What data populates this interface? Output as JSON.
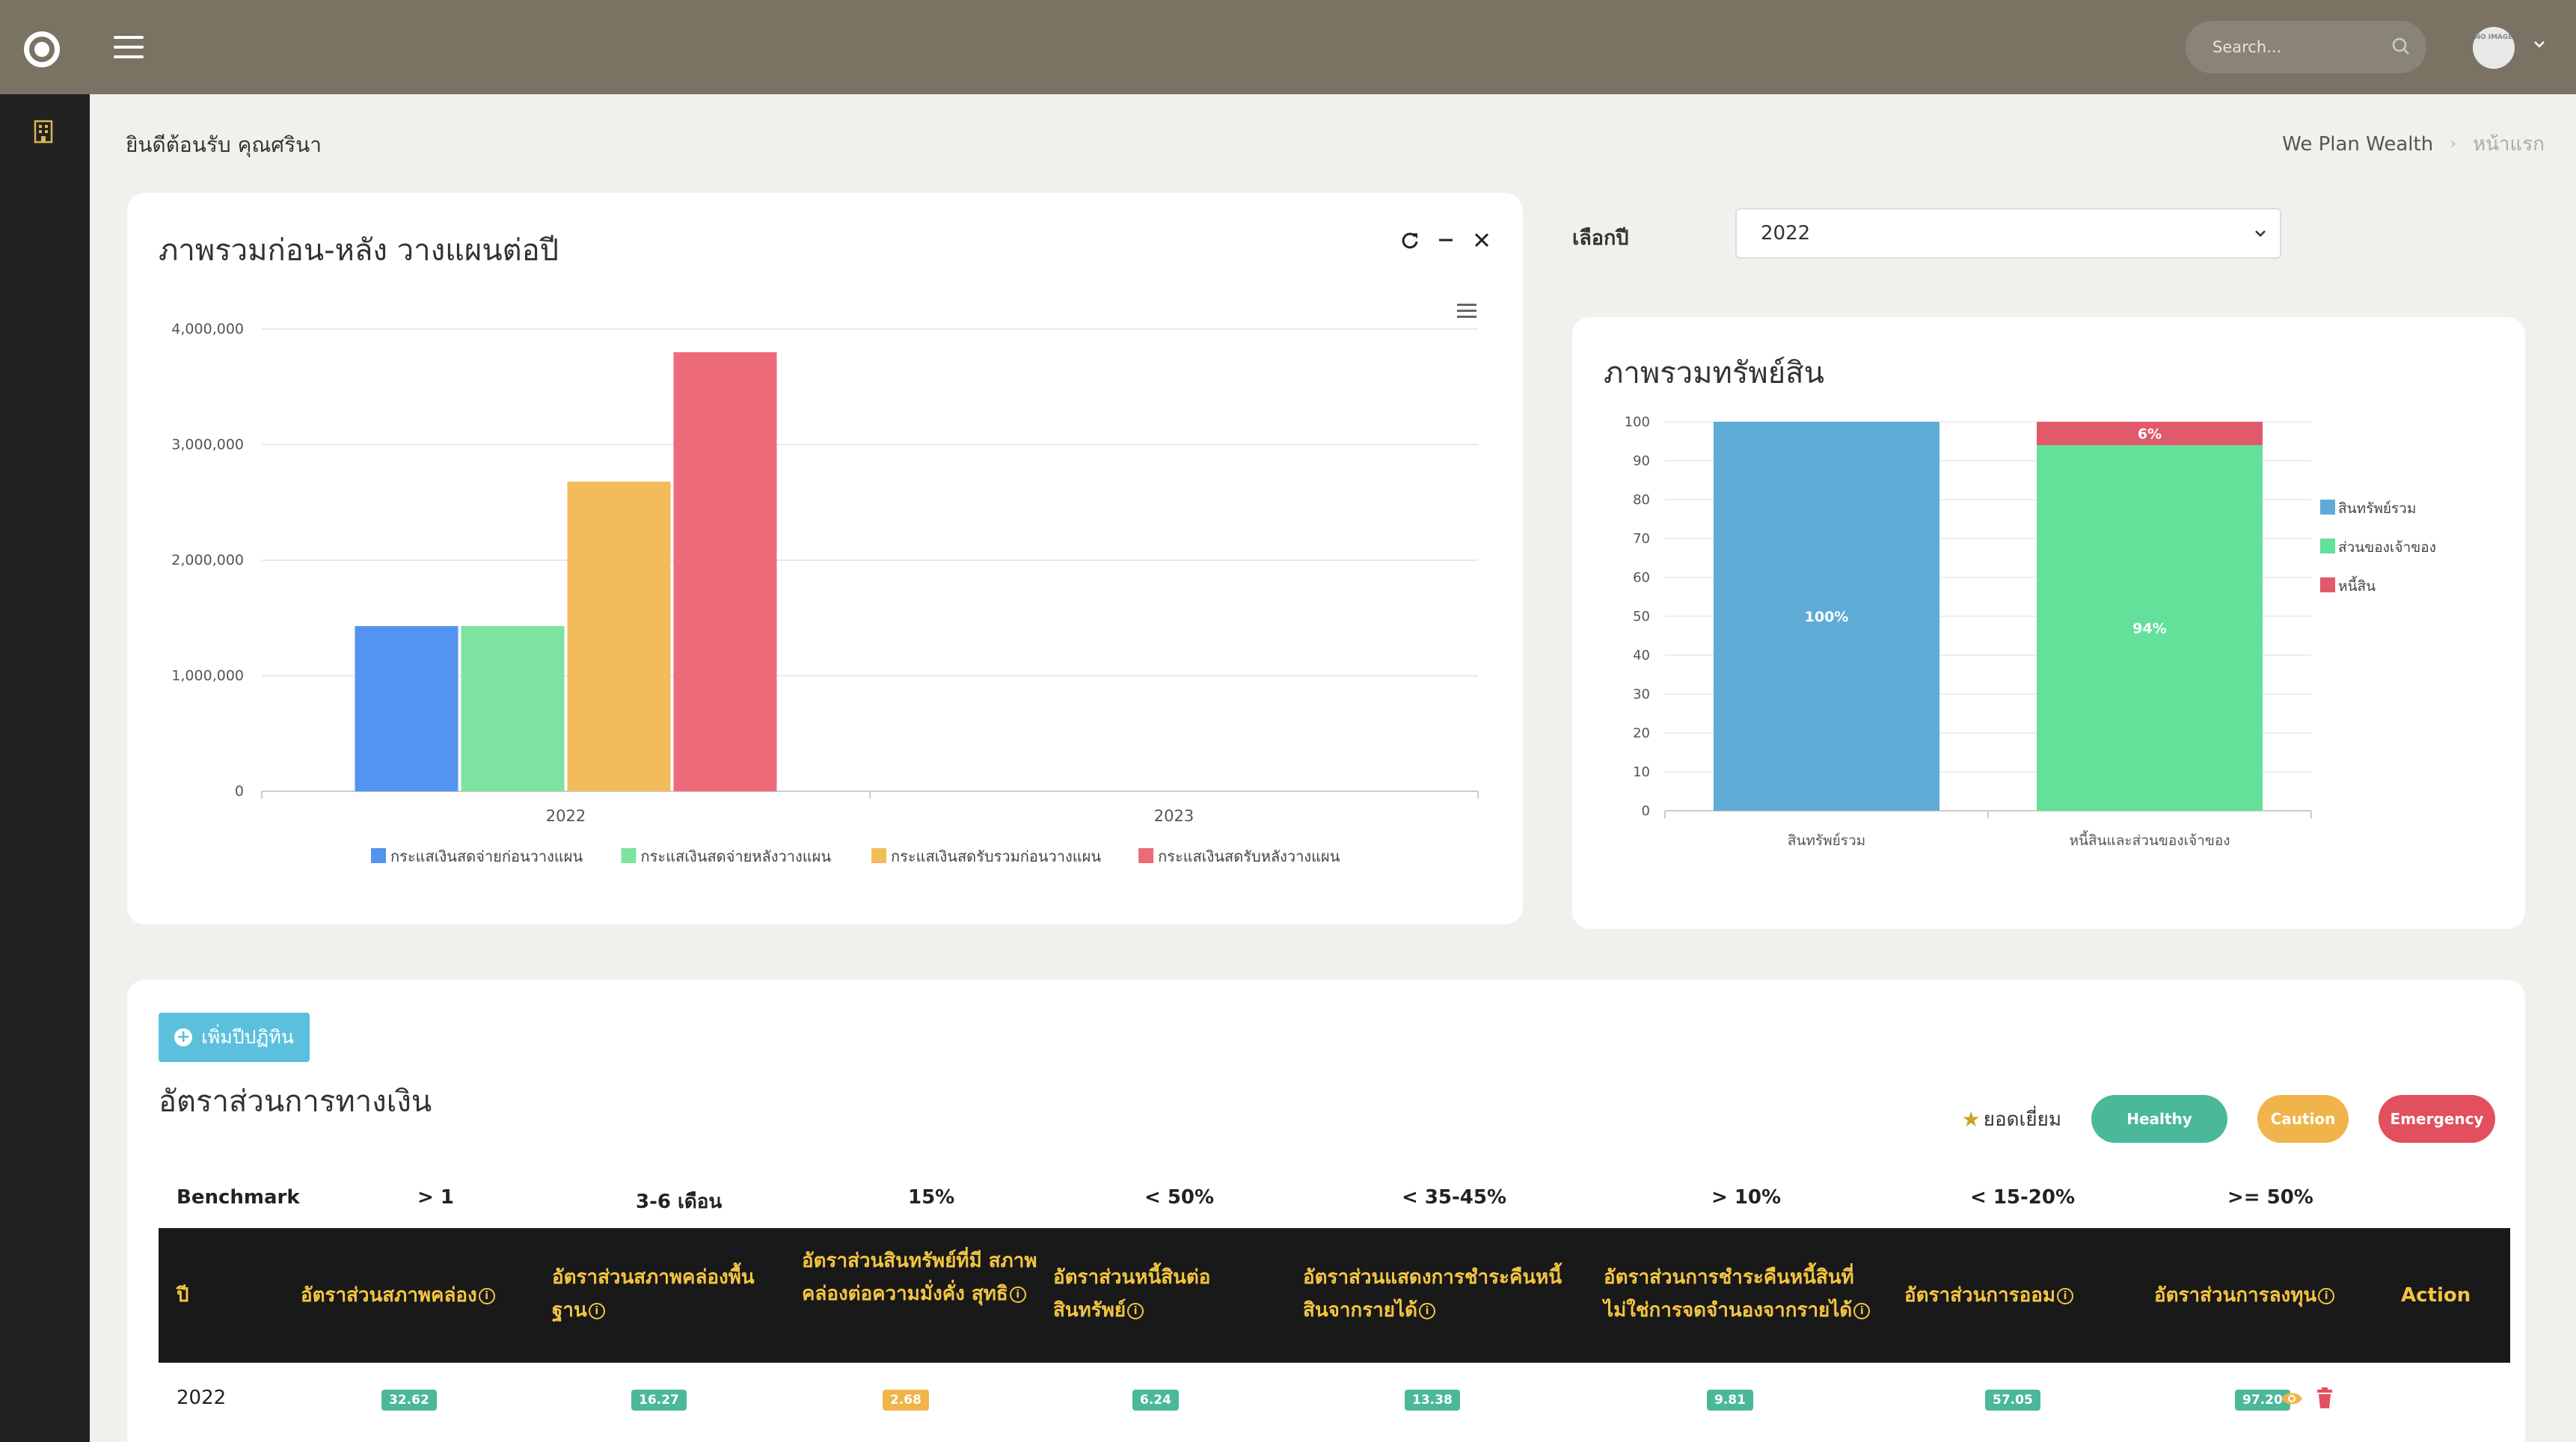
{
  "header": {
    "search_placeholder": "Search...",
    "avatar_text": "NO IMAGE"
  },
  "page": {
    "welcome": "ยินดีต้อนรับ คุณศรินา",
    "breadcrumb": [
      "We Plan Wealth",
      "หน้าแรก"
    ]
  },
  "year_select": {
    "label": "เลือกปี",
    "value": "2022"
  },
  "card_before_after": {
    "title": "ภาพรวมก่อน-หลัง วางแผนต่อปี"
  },
  "card_assets": {
    "title": "ภาพรวมทรัพย์สิน"
  },
  "ratios": {
    "add_button": "เพิ่มปีปฏิทิน",
    "title": "อัตราส่วนการทางเงิน",
    "legend": {
      "excellent": "ยอดเยี่ยม",
      "healthy": "Healthy",
      "caution": "Caution",
      "emergency": "Emergency"
    },
    "benchmark": {
      "label": "Benchmark",
      "values": [
        "> 1",
        "3-6 เดือน",
        "15%",
        "< 50%",
        "< 35-45%",
        "> 10%",
        "< 15-20%",
        ">= 50%"
      ]
    },
    "columns": [
      "ปี",
      "อัตราส่วนสภาพคล่อง",
      "อัตราส่วนสภาพคล่องพื้น ฐาน",
      "อัตราส่วนสินทรัพย์ที่มี สภาพคล่องต่อความมั่งคั่ง สุทธิ",
      "อัตราส่วนหนี้สินต่อ สินทรัพย์",
      "อัตราส่วนแสดงการชำระคืนหนี้ สินจากรายได้",
      "อัตราส่วนการชำระคืนหนี้สินที่ ไม่ใช่การจดจำนองจากรายได้",
      "อัตราส่วนการออม",
      "อัตราส่วนการลงทุน",
      "Action"
    ],
    "rows": [
      {
        "year": "2022",
        "values": [
          "32.62",
          "16.27",
          "2.68",
          "6.24",
          "13.38",
          "9.81",
          "57.05",
          "97.20"
        ],
        "statuses": [
          "green",
          "green",
          "yellow",
          "green",
          "green",
          "green",
          "green",
          "green"
        ]
      }
    ]
  },
  "chart_data": [
    {
      "type": "bar",
      "categories": [
        "2022",
        "2023"
      ],
      "series": [
        {
          "name": "กระแสเงินสดจ่ายก่อนวางแผน",
          "color": "#5294f0",
          "values": [
            1430000,
            0
          ]
        },
        {
          "name": "กระแสเงินสดจ่ายหลังวางแผน",
          "color": "#7de3a0",
          "values": [
            1430000,
            0
          ]
        },
        {
          "name": "กระแสเงินสดรับรวมก่อนวางแผน",
          "color": "#f2bb5b",
          "values": [
            2680000,
            0
          ]
        },
        {
          "name": "กระแสเงินสดรับหลังวางแผน",
          "color": "#ed6b79",
          "values": [
            3800000,
            0
          ]
        }
      ],
      "ylim": [
        0,
        4000000
      ],
      "yticks": [
        "0",
        "1,000,000",
        "2,000,000",
        "3,000,000",
        "4,000,000"
      ],
      "legend": "bottom",
      "grid": true
    },
    {
      "type": "bar",
      "stacked": true,
      "categories": [
        "สินทรัพย์รวม",
        "หนี้สินและส่วนของเจ้าของ"
      ],
      "series": [
        {
          "name": "สินทรัพย์รวม",
          "color": "#5eabd6",
          "values": [
            100,
            0
          ],
          "labels": [
            "100%",
            ""
          ]
        },
        {
          "name": "ส่วนของเจ้าของ",
          "color": "#63e09a",
          "values": [
            0,
            94
          ],
          "labels": [
            "",
            "94%"
          ]
        },
        {
          "name": "หนี้สิน",
          "color": "#e05a6b",
          "values": [
            0,
            6
          ],
          "labels": [
            "",
            "6%"
          ]
        }
      ],
      "ylim": [
        0,
        100
      ],
      "yticks": [
        "0",
        "10",
        "20",
        "30",
        "40",
        "50",
        "60",
        "70",
        "80",
        "90",
        "100"
      ],
      "legend": "right",
      "grid": true
    }
  ]
}
